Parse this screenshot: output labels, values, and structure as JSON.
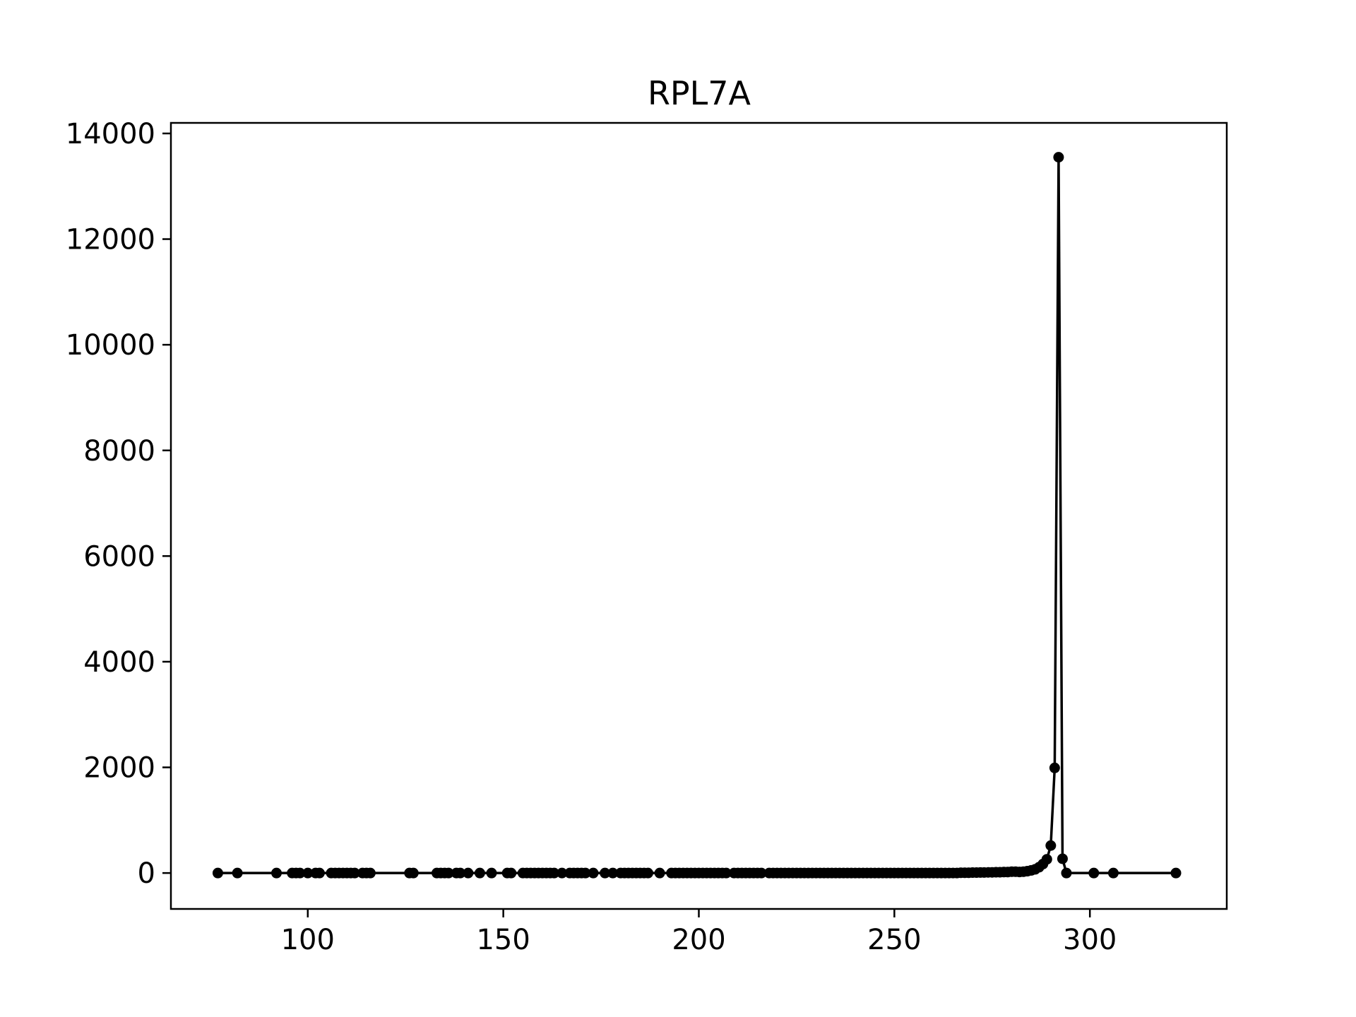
{
  "chart_data": {
    "type": "line",
    "title": "RPL7A",
    "xlabel": "",
    "ylabel": "",
    "xlim": [
      65,
      335
    ],
    "ylim": [
      -680,
      14200
    ],
    "xticks": [
      100,
      150,
      200,
      250,
      300
    ],
    "yticks": [
      0,
      2000,
      4000,
      6000,
      8000,
      10000,
      12000,
      14000
    ],
    "grid": false,
    "line_color": "#000000",
    "marker": "circle",
    "series": [
      {
        "x": [
          77,
          82,
          92,
          96,
          97,
          98,
          100,
          102,
          103,
          106,
          107,
          108,
          109,
          110,
          111,
          112,
          114,
          115,
          116,
          126,
          127,
          133,
          134,
          135,
          136,
          138,
          139,
          141,
          144,
          147,
          151,
          152,
          155,
          156,
          157,
          158,
          159,
          160,
          161,
          162,
          163,
          165,
          167,
          168,
          169,
          170,
          171,
          173,
          176,
          178,
          180,
          181,
          182,
          183,
          184,
          185,
          186,
          187,
          190,
          193,
          194,
          195,
          196,
          197,
          198,
          199,
          200,
          201,
          202,
          203,
          204,
          205,
          206,
          207,
          209,
          210,
          211,
          212,
          213,
          214,
          215,
          216,
          218,
          219,
          220,
          221,
          222,
          223,
          224,
          225,
          226,
          227,
          228,
          229,
          230,
          231,
          232,
          233,
          234,
          235,
          236,
          237,
          238,
          239,
          240,
          241,
          242,
          243,
          244,
          245,
          246,
          247,
          248,
          249,
          250,
          251,
          252,
          253,
          254,
          255,
          256,
          257,
          258,
          259,
          260,
          261,
          262,
          263,
          264,
          265,
          266,
          267,
          268,
          269,
          270,
          271,
          272,
          273,
          274,
          275,
          276,
          277,
          278,
          279,
          280,
          281,
          282,
          283,
          284,
          285,
          286,
          287,
          288,
          289,
          290,
          291,
          292,
          293,
          294,
          301,
          306,
          322
        ],
        "y": [
          0,
          0,
          0,
          0,
          0,
          0,
          0,
          0,
          0,
          0,
          0,
          0,
          0,
          0,
          0,
          0,
          0,
          0,
          0,
          0,
          0,
          0,
          0,
          0,
          0,
          0,
          0,
          0,
          0,
          0,
          0,
          0,
          0,
          0,
          0,
          0,
          0,
          0,
          0,
          0,
          0,
          0,
          0,
          0,
          0,
          0,
          0,
          0,
          0,
          0,
          0,
          0,
          0,
          0,
          0,
          0,
          0,
          0,
          0,
          0,
          0,
          0,
          0,
          0,
          0,
          0,
          0,
          0,
          0,
          0,
          0,
          0,
          0,
          0,
          0,
          0,
          0,
          0,
          0,
          0,
          0,
          0,
          0,
          0,
          0,
          0,
          0,
          0,
          0,
          0,
          0,
          0,
          0,
          0,
          0,
          0,
          0,
          0,
          0,
          0,
          0,
          0,
          0,
          0,
          0,
          0,
          0,
          0,
          0,
          0,
          0,
          0,
          0,
          0,
          0,
          0,
          0,
          0,
          0,
          0,
          0,
          0,
          0,
          0,
          0,
          0,
          0,
          0,
          0,
          0,
          0,
          5,
          5,
          5,
          8,
          8,
          10,
          10,
          12,
          12,
          15,
          15,
          18,
          18,
          25,
          25,
          20,
          25,
          35,
          50,
          70,
          110,
          170,
          260,
          520,
          1990,
          13550,
          270,
          0,
          0,
          0,
          0
        ]
      }
    ]
  }
}
